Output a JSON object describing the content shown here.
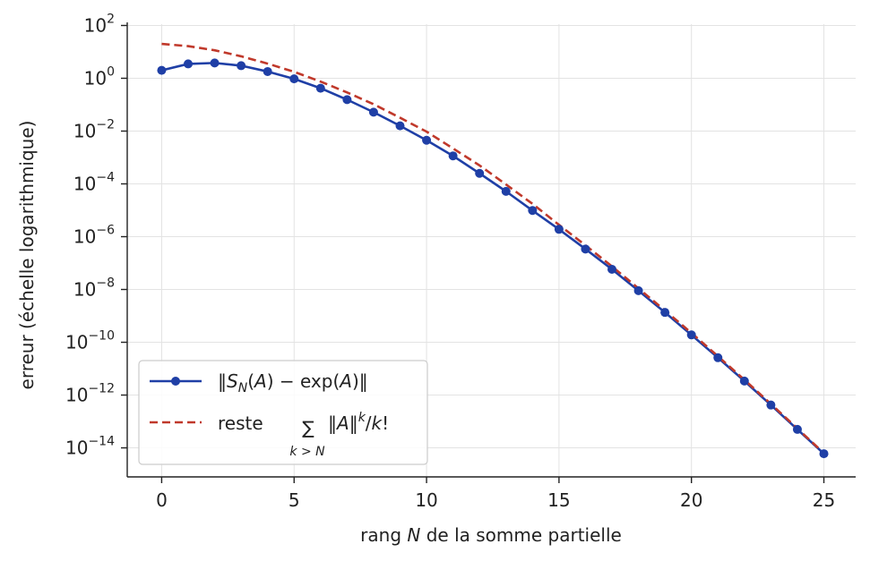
{
  "chart_data": {
    "type": "line",
    "xlabel_prefix": "rang ",
    "xlabel_var": "N",
    "xlabel_suffix": " de la somme partielle",
    "ylabel": "erreur (échelle logarithmique)",
    "xlim": [
      -1.3,
      26.2
    ],
    "ylim_log10": [
      -15.1,
      2.05
    ],
    "yscale": "log",
    "grid": true,
    "legend_position": "lower-left",
    "x_ticks": [
      0,
      5,
      10,
      15,
      20,
      25
    ],
    "y_tick_exponents": [
      2,
      0,
      -2,
      -4,
      -6,
      -8,
      -10,
      -12,
      -14
    ],
    "y_tick_base": "10",
    "x": [
      0,
      1,
      2,
      3,
      4,
      5,
      6,
      7,
      8,
      9,
      10,
      11,
      12,
      13,
      14,
      15,
      16,
      17,
      18,
      19,
      20,
      21,
      22,
      23,
      24,
      25
    ],
    "series": [
      {
        "name": "‖S_N(A) − exp(A)‖",
        "style": "solid-markers",
        "color": "#1f3fa6",
        "values": [
          2.0,
          3.5,
          3.8,
          3.0,
          1.8,
          0.95,
          0.42,
          0.155,
          0.052,
          0.0158,
          0.0045,
          0.00115,
          0.00025,
          5.2e-05,
          9.8e-06,
          1.9e-06,
          3.4e-07,
          5.8e-08,
          9e-09,
          1.35e-09,
          1.9e-10,
          2.6e-11,
          3.4e-12,
          4.2e-13,
          5e-14,
          6e-15
        ]
      },
      {
        "name": "reste Σ_{k>N} ‖A‖^k/k!",
        "style": "dashed",
        "color": "#c0392b",
        "values": [
          20.0,
          16.5,
          11.5,
          6.8,
          3.6,
          1.75,
          0.75,
          0.29,
          0.104,
          0.032,
          0.0095,
          0.0022,
          0.0005,
          9.5e-05,
          1.75e-05,
          2.8e-06,
          4.7e-07,
          7.5e-08,
          1.1e-08,
          1.6e-09,
          2.25e-10,
          2.95e-11,
          3.8e-12,
          4.6e-13,
          5.4e-14,
          6.3e-15
        ]
      }
    ]
  },
  "legend": {
    "entry1": {
      "norm_open": "‖",
      "S": "S",
      "N_sub": "N",
      "open_paren": "(",
      "A": "A",
      "close_minus": ") − exp(",
      "A2": "A",
      "close": ")",
      "norm_close": "‖"
    },
    "entry2": {
      "word": "reste",
      "sum": "∑",
      "sub": "k > N",
      "norm_open": "‖",
      "A": "A",
      "norm_close": "‖",
      "sup": "k",
      "slash": "/",
      "k": "k",
      "bang": "!"
    }
  }
}
